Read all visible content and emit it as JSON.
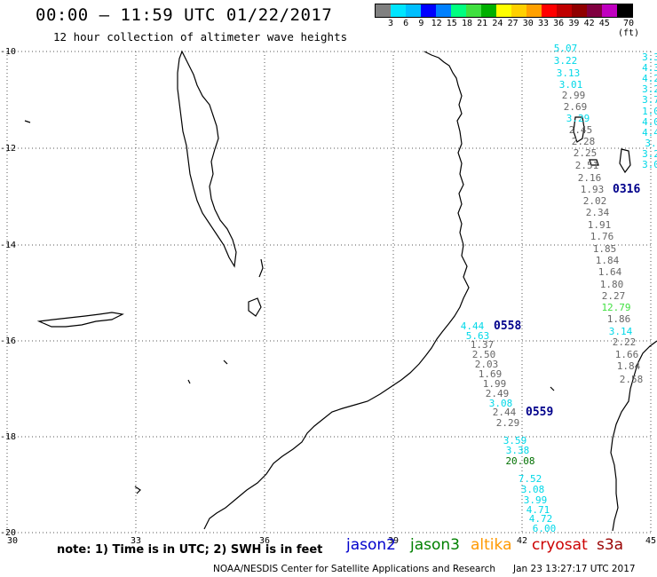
{
  "header": {
    "title": "00:00 – 11:59 UTC 01/22/2017",
    "subtitle": "12 hour collection of altimeter wave heights"
  },
  "scale": {
    "colors": [
      "#808080",
      "#00e5ff",
      "#00bfff",
      "#0000ff",
      "#0080ff",
      "#00ff80",
      "#40e040",
      "#00b000",
      "#ffff00",
      "#ffd000",
      "#ffa000",
      "#ff0000",
      "#c00000",
      "#900000",
      "#800040",
      "#c000c0",
      "#000000"
    ],
    "labels": [
      "3",
      "6",
      "9",
      "12",
      "15",
      "18",
      "21",
      "24",
      "27",
      "30",
      "33",
      "36",
      "39",
      "42",
      "45",
      "70 (ft)"
    ]
  },
  "axes": {
    "lon_labels": [
      "30",
      "33",
      "36",
      "39",
      "42",
      "45"
    ],
    "lat_labels": [
      "-10",
      "-12",
      "-14",
      "-16",
      "-18",
      "-20"
    ]
  },
  "passes": [
    {
      "label": "0558"
    },
    {
      "label": "0559"
    },
    {
      "label": "0316"
    }
  ],
  "waves": {
    "top_track": [
      "5.07",
      "3.22",
      "3.13",
      "3.01",
      "2.99",
      "2.69",
      "3.29",
      "2.45",
      "2.28",
      "2.25",
      "2.51",
      "2.16",
      "1.93",
      "2.02",
      "2.34",
      "1.91",
      "1.76",
      "1.85",
      "1.84",
      "1.64",
      "1.80",
      "2.27",
      "12.79",
      "1.86",
      "3.14",
      "2.22",
      "1.66",
      "1.84",
      "2.58"
    ],
    "mid_track": [
      "4.44",
      "5.63",
      "1.37",
      "2.50",
      "2.03",
      "1.69",
      "1.99",
      "2.49",
      "3.08",
      "2.44",
      "2.29",
      "3.59",
      "3.38",
      "20.08",
      "7.52",
      "3.08",
      "3.99",
      "4.71",
      "4.72",
      "6.00"
    ],
    "edge": [
      "3.3",
      "4.3",
      "4.2",
      "3.2",
      "3.7",
      "1.0",
      "4.0",
      "4.4",
      "3.",
      "3.2",
      "3.0"
    ]
  },
  "footer": {
    "note": "note:  1) Time is in UTC;  2) SWH is in feet",
    "legend": [
      {
        "name": "jason2",
        "color": "#0000cc"
      },
      {
        "name": "jason3",
        "color": "#008000"
      },
      {
        "name": "altika",
        "color": "#ff9900"
      },
      {
        "name": "cryosat",
        "color": "#cc0000"
      },
      {
        "name": "s3a",
        "color": "#990000"
      }
    ],
    "credit": "NOAA/NESDIS Center for Satellite Applications and Research",
    "timestamp": "Jan 23 13:27:17 UTC 2017"
  }
}
